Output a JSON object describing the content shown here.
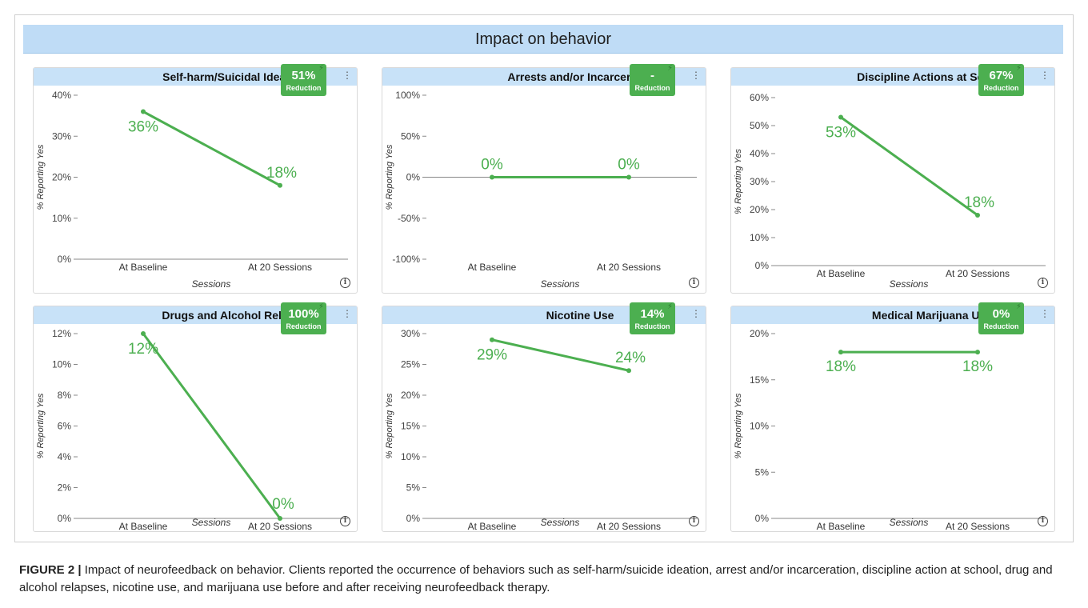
{
  "banner": {
    "title": "Impact on behavior"
  },
  "chart_data": [
    {
      "type": "line",
      "title": "Self-harm/Suicidal Ideation",
      "badge_value": "51%",
      "badge_label": "Reduction",
      "categories": [
        "At Baseline",
        "At 20 Sessions"
      ],
      "values": [
        36,
        18
      ],
      "data_labels": [
        "36%",
        "18%"
      ],
      "ylim": [
        0,
        40
      ],
      "yticks": [
        0,
        10,
        20,
        30,
        40
      ],
      "ytick_labels": [
        "0%",
        "10%",
        "20%",
        "30%",
        "40%"
      ],
      "xlabel": "Sessions",
      "ylabel": "% Reporting Yes",
      "color": "#4caf50"
    },
    {
      "type": "line",
      "title": "Arrests and/or Incarcerations",
      "badge_value": "-",
      "badge_label": "Reduction",
      "categories": [
        "At Baseline",
        "At 20 Sessions"
      ],
      "values": [
        0,
        0
      ],
      "data_labels": [
        "0%",
        "0%"
      ],
      "ylim": [
        -100,
        100
      ],
      "yticks": [
        -100,
        -50,
        0,
        50,
        100
      ],
      "ytick_labels": [
        "-100%",
        "-50%",
        "0%",
        "50%",
        "100%"
      ],
      "xlabel": "Sessions",
      "ylabel": "% Reporting Yes",
      "color": "#4caf50"
    },
    {
      "type": "line",
      "title": "Discipline Actions at School",
      "badge_value": "67%",
      "badge_label": "Reduction",
      "categories": [
        "At Baseline",
        "At 20 Sessions"
      ],
      "values": [
        53,
        18
      ],
      "data_labels": [
        "53%",
        "18%"
      ],
      "ylim": [
        0,
        60
      ],
      "yticks": [
        0,
        10,
        20,
        30,
        40,
        50,
        60
      ],
      "ytick_labels": [
        "0%",
        "10%",
        "20%",
        "30%",
        "40%",
        "50%",
        "60%"
      ],
      "xlabel": "Sessions",
      "ylabel": "% Reporting Yes",
      "color": "#4caf50"
    },
    {
      "type": "line",
      "title": "Drugs and Alcohol Relapses",
      "badge_value": "100%",
      "badge_label": "Reduction",
      "categories": [
        "At Baseline",
        "At 20 Sessions"
      ],
      "values": [
        12,
        0
      ],
      "data_labels": [
        "12%",
        "0%"
      ],
      "ylim": [
        0,
        12
      ],
      "yticks": [
        0,
        2,
        4,
        6,
        8,
        10,
        12
      ],
      "ytick_labels": [
        "0%",
        "2%",
        "4%",
        "6%",
        "8%",
        "10%",
        "12%"
      ],
      "xlabel": "Sessions",
      "ylabel": "% Reporting Yes",
      "color": "#4caf50"
    },
    {
      "type": "line",
      "title": "Nicotine Use",
      "badge_value": "14%",
      "badge_label": "Reduction",
      "categories": [
        "At Baseline",
        "At 20 Sessions"
      ],
      "values": [
        29,
        24
      ],
      "data_labels": [
        "29%",
        "24%"
      ],
      "ylim": [
        0,
        30
      ],
      "yticks": [
        0,
        5,
        10,
        15,
        20,
        25,
        30
      ],
      "ytick_labels": [
        "0%",
        "5%",
        "10%",
        "15%",
        "20%",
        "25%",
        "30%"
      ],
      "xlabel": "Sessions",
      "ylabel": "% Reporting Yes",
      "color": "#4caf50"
    },
    {
      "type": "line",
      "title": "Medical Marijuana Use",
      "badge_value": "0%",
      "badge_label": "Reduction",
      "categories": [
        "At Baseline",
        "At 20 Sessions"
      ],
      "values": [
        18,
        18
      ],
      "data_labels": [
        "18%",
        "18%"
      ],
      "ylim": [
        0,
        20
      ],
      "yticks": [
        0,
        5,
        10,
        15,
        20
      ],
      "ytick_labels": [
        "0%",
        "5%",
        "10%",
        "15%",
        "20%"
      ],
      "xlabel": "Sessions",
      "ylabel": "% Reporting Yes",
      "color": "#4caf50"
    }
  ],
  "icons": {
    "bolt": "bolt-icon",
    "menu": "vertical-dots-icon",
    "info": "info-icon"
  },
  "caption": {
    "label": "FIGURE 2 |",
    "text": " Impact of neurofeedback on behavior. Clients reported the occurrence of behaviors such as self-harm/suicide ideation, arrest and/or incarceration, discipline action at school, drug and alcohol relapses, nicotine use, and marijuana use before and after receiving neurofeedback therapy."
  }
}
